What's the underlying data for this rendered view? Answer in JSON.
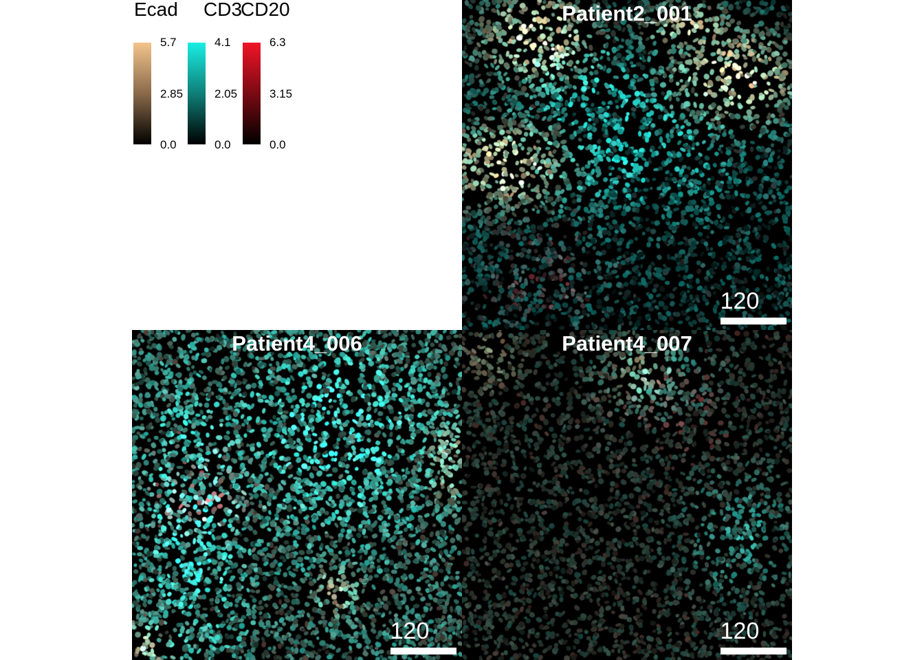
{
  "legend": {
    "channels": [
      {
        "name": "Ecad",
        "max": "5.7",
        "mid": "2.85",
        "min": "0.0",
        "color": "#f1c28b"
      },
      {
        "name": "CD3",
        "max": "4.1",
        "mid": "2.05",
        "min": "0.0",
        "color": "#19ebe0"
      },
      {
        "name": "CD20",
        "max": "6.3",
        "mid": "3.15",
        "min": "0.0",
        "color": "#ee1122"
      }
    ]
  },
  "panels": [
    {
      "title": "Patient2_001",
      "scale_label": "120"
    },
    {
      "title": "Patient4_006",
      "scale_label": "120"
    },
    {
      "title": "Patient4_007",
      "scale_label": "120"
    }
  ]
}
